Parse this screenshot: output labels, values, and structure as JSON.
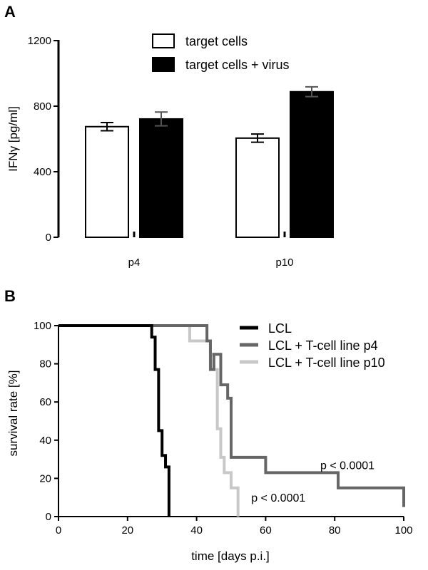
{
  "chart_data": [
    {
      "panel_label": "A",
      "type": "bar",
      "ylabel": "IFNγ [pg/ml]",
      "ylim": [
        0,
        1200
      ],
      "yticks": [
        "0",
        "400",
        "800",
        "1200"
      ],
      "categories": [
        "p4",
        "p10"
      ],
      "series": [
        {
          "name": "target cells",
          "color": "#ffffff",
          "values": [
            675,
            605
          ],
          "errors": [
            25,
            25
          ]
        },
        {
          "name": "target cells + virus",
          "color": "#000000",
          "values": [
            722,
            888
          ],
          "errors": [
            42,
            30
          ]
        }
      ],
      "legend_position": "top-center",
      "grid": false
    },
    {
      "panel_label": "B",
      "type": "line",
      "subtype": "kaplan-meier step",
      "xlabel": "time [days p.i.]",
      "ylabel": "survival rate [%]",
      "xlim": [
        0,
        100
      ],
      "ylim": [
        0,
        100
      ],
      "xticks": [
        "0",
        "20",
        "40",
        "60",
        "80",
        "100"
      ],
      "yticks": [
        "0",
        "20",
        "40",
        "60",
        "80",
        "100"
      ],
      "legend_position": "top-right",
      "grid": false,
      "series": [
        {
          "name": "LCL",
          "color": "#000000",
          "x": [
            0,
            26,
            27,
            28,
            29,
            30,
            31,
            32
          ],
          "y": [
            100,
            100,
            94,
            77,
            45,
            32,
            26,
            0
          ]
        },
        {
          "name": "LCL + T-cell line p4",
          "color": "#666666",
          "x": [
            0,
            42,
            43,
            44,
            45,
            47,
            49,
            50,
            60,
            81,
            100
          ],
          "y": [
            100,
            100,
            92,
            77,
            85,
            69,
            62,
            31,
            23,
            15,
            5
          ]
        },
        {
          "name": "LCL + T-cell line p10",
          "color": "#c8c8c8",
          "x": [
            0,
            37,
            38,
            40,
            44,
            45,
            46,
            47,
            48,
            50,
            52
          ],
          "y": [
            100,
            100,
            92,
            92,
            85,
            77,
            46,
            31,
            23,
            15,
            0
          ]
        }
      ],
      "annotations": [
        {
          "text": "p < 0.0001",
          "x": 75,
          "y": 23
        },
        {
          "text": "p < 0.0001",
          "x": 55,
          "y": 6
        }
      ]
    }
  ]
}
